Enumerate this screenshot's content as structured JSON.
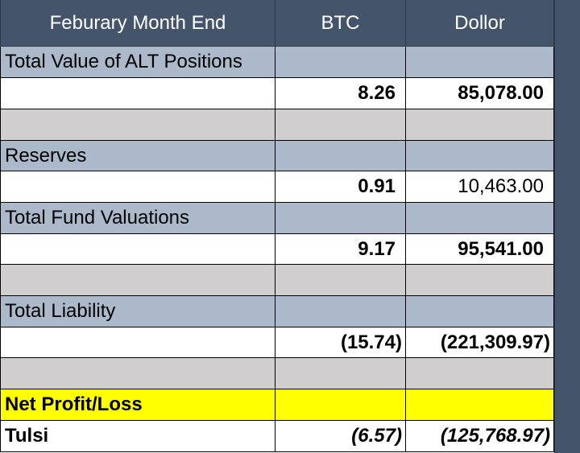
{
  "header": {
    "period_label": "Feburary Month End",
    "col_btc": "BTC",
    "col_dollar": "Dollor"
  },
  "rows": {
    "alt_positions": {
      "label": "Total Value of ALT Positions",
      "btc": "8.26",
      "dollar": "85,078.00"
    },
    "reserves": {
      "label": "Reserves",
      "btc": "0.91",
      "dollar": "10,463.00"
    },
    "fund_valuations": {
      "label": "Total Fund Valuations",
      "btc": "9.17",
      "dollar": "95,541.00"
    },
    "liability": {
      "label": "Total Liability",
      "btc": "(15.74)",
      "dollar": "(221,309.97)"
    },
    "net_profit": {
      "label": "Net Profit/Loss"
    },
    "tulsi": {
      "label": "Tulsi",
      "btc": "(6.57)",
      "dollar": "(125,768.97)"
    }
  },
  "colors": {
    "header_bg": "#44546a",
    "label_row_bg": "#acb9ca",
    "spacer_row_bg": "#d0cece",
    "highlight_bg": "#ffff00"
  }
}
